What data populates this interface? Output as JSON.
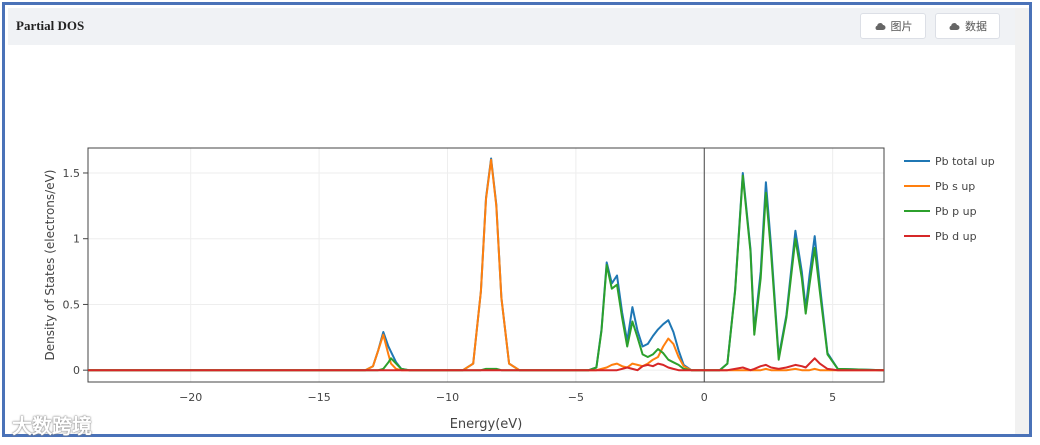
{
  "header": {
    "title": "Partial DOS",
    "buttons": [
      "图片",
      "数据"
    ]
  },
  "watermark": "大数跨境",
  "chart_data": {
    "type": "line",
    "xlabel": "Energy(eV)",
    "ylabel": "Density of States (electrons/eV)",
    "xlim": [
      -24,
      7
    ],
    "ylim": [
      -0.09,
      1.69
    ],
    "xticks": [
      {
        "value": -20,
        "label": "−20"
      },
      {
        "value": -15,
        "label": "−15"
      },
      {
        "value": -10,
        "label": "−10"
      },
      {
        "value": -5,
        "label": "−5"
      },
      0,
      5
    ],
    "yticks": [
      0,
      0.5,
      1,
      1.5
    ],
    "grid": true,
    "legend": "right",
    "vline": 0,
    "x": [
      -24,
      -13.2,
      -12.9,
      -12.7,
      -12.5,
      -12.3,
      -12.2,
      -12.0,
      -11.8,
      -11.5,
      -9.4,
      -9.0,
      -8.7,
      -8.5,
      -8.3,
      -8.1,
      -7.9,
      -7.6,
      -7.2,
      -4.5,
      -4.2,
      -4.0,
      -3.8,
      -3.6,
      -3.4,
      -3.2,
      -3.0,
      -2.8,
      -2.6,
      -2.4,
      -2.2,
      -2.0,
      -1.8,
      -1.6,
      -1.4,
      -1.2,
      -1.0,
      -0.8,
      -0.5,
      0.6,
      0.9,
      1.2,
      1.5,
      1.8,
      1.95,
      2.2,
      2.4,
      2.6,
      2.9,
      3.2,
      3.55,
      3.8,
      3.95,
      4.1,
      4.3,
      4.5,
      4.8,
      5.2,
      7
    ],
    "series": [
      {
        "name": "Pb total up",
        "color": "#1f77b4",
        "values": [
          0,
          0,
          0.03,
          0.15,
          0.29,
          0.18,
          0.14,
          0.06,
          0.01,
          0,
          0,
          0.05,
          0.6,
          1.31,
          1.61,
          1.26,
          0.55,
          0.05,
          0,
          0,
          0.02,
          0.31,
          0.82,
          0.66,
          0.72,
          0.44,
          0.22,
          0.48,
          0.3,
          0.18,
          0.2,
          0.26,
          0.31,
          0.35,
          0.38,
          0.29,
          0.15,
          0.04,
          0,
          0,
          0.05,
          0.61,
          1.5,
          0.92,
          0.3,
          0.75,
          1.43,
          0.95,
          0.1,
          0.42,
          1.06,
          0.75,
          0.47,
          0.72,
          1.02,
          0.65,
          0.13,
          0.01,
          0
        ]
      },
      {
        "name": "Pb s up",
        "color": "#ff7f0e",
        "values": [
          0,
          0,
          0.03,
          0.15,
          0.27,
          0.12,
          0.05,
          0.01,
          0,
          0,
          0,
          0.05,
          0.6,
          1.3,
          1.6,
          1.25,
          0.55,
          0.05,
          0,
          0,
          0,
          0.01,
          0.02,
          0.04,
          0.05,
          0.03,
          0.02,
          0.05,
          0.04,
          0.03,
          0.05,
          0.08,
          0.1,
          0.18,
          0.24,
          0.2,
          0.1,
          0.03,
          0,
          0,
          0,
          0,
          0,
          0,
          0,
          0,
          0.01,
          0,
          0,
          0,
          0.01,
          0,
          0,
          0,
          0.01,
          0,
          0,
          0,
          0
        ]
      },
      {
        "name": "Pb p up",
        "color": "#2ca02c",
        "values": [
          0,
          0,
          0,
          0,
          0.01,
          0.06,
          0.09,
          0.05,
          0.01,
          0,
          0,
          0,
          0,
          0.01,
          0.01,
          0.01,
          0,
          0,
          0,
          0,
          0.02,
          0.3,
          0.8,
          0.62,
          0.65,
          0.4,
          0.18,
          0.37,
          0.25,
          0.12,
          0.1,
          0.12,
          0.16,
          0.13,
          0.08,
          0.06,
          0.04,
          0.01,
          0,
          0,
          0.05,
          0.6,
          1.48,
          0.9,
          0.27,
          0.7,
          1.35,
          0.9,
          0.08,
          0.4,
          1.0,
          0.7,
          0.43,
          0.65,
          0.93,
          0.6,
          0.12,
          0.01,
          0
        ]
      },
      {
        "name": "Pb d up",
        "color": "#d62728",
        "values": [
          0,
          0,
          0,
          0,
          0,
          0,
          0,
          0,
          0,
          0,
          0,
          0,
          0,
          0,
          0,
          0,
          0,
          0,
          0,
          0,
          0,
          0,
          0,
          0,
          0,
          0.01,
          0.02,
          0.01,
          0,
          0.03,
          0.04,
          0.03,
          0.05,
          0.04,
          0.02,
          0.01,
          0,
          0,
          0,
          0,
          0,
          0.01,
          0.02,
          0,
          0.01,
          0.03,
          0.04,
          0.02,
          0.01,
          0.02,
          0.04,
          0.03,
          0.02,
          0.05,
          0.09,
          0.05,
          0.01,
          0,
          0
        ]
      }
    ]
  }
}
